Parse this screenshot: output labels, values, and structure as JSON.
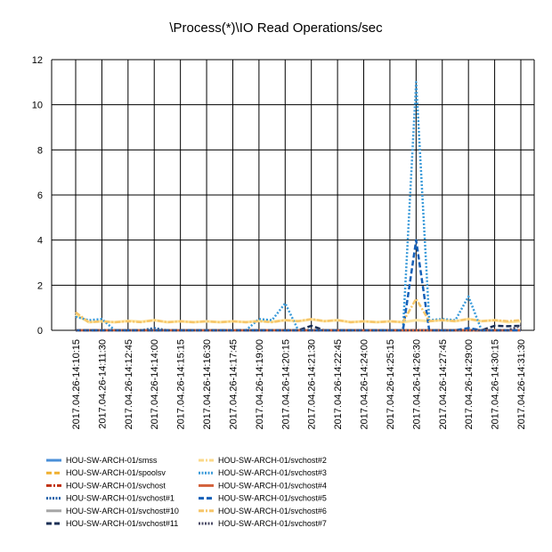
{
  "chart_data": {
    "type": "line",
    "title": "\\Process(*)\\IO Read Operations/sec",
    "xlabel": "",
    "ylabel": "",
    "ylim": [
      0,
      12
    ],
    "yticks": [
      0,
      2,
      4,
      6,
      8,
      10,
      12
    ],
    "grid": true,
    "legend_position": "bottom",
    "categories": [
      "2017.04.26-14:10:15",
      "2017.04.26-14:11:30",
      "2017.04.26-14:12:45",
      "2017.04.26-14:14:00",
      "2017.04.26-14:15:15",
      "2017.04.26-14:16:30",
      "2017.04.26-14:17:45",
      "2017.04.26-14:19:00",
      "2017.04.26-14:20:15",
      "2017.04.26-14:21:30",
      "2017.04.26-14:22:45",
      "2017.04.26-14:24:00",
      "2017.04.26-14:25:15",
      "2017.04.26-14:26:30",
      "2017.04.26-14:27:45",
      "2017.04.26-14:29:00",
      "2017.04.26-14:30:15",
      "2017.04.26-14:31:30"
    ],
    "series": [
      {
        "name": "HOU-SW-ARCH-01/smss",
        "color": "#4a8fd8",
        "dash": "solid",
        "values": [
          0,
          0,
          0,
          0,
          0,
          0,
          0,
          0,
          0,
          0,
          0,
          0,
          0,
          0,
          0,
          0,
          0,
          0
        ]
      },
      {
        "name": "HOU-SW-ARCH-01/spoolsv",
        "color": "#f0b030",
        "dash": "dash",
        "values": [
          0,
          0,
          0,
          0,
          0,
          0,
          0,
          0,
          0,
          0,
          0,
          0,
          0,
          0,
          0,
          0,
          0,
          0
        ]
      },
      {
        "name": "HOU-SW-ARCH-01/svchost",
        "color": "#c03010",
        "dash": "dashdot",
        "values": [
          0,
          0,
          0,
          0,
          0,
          0,
          0,
          0,
          0,
          0,
          0,
          0,
          0,
          0,
          0,
          0,
          0,
          0
        ]
      },
      {
        "name": "HOU-SW-ARCH-01/svchost#1",
        "color": "#1f5fa8",
        "dash": "dot",
        "values": [
          0,
          0,
          0,
          0.1,
          0,
          0,
          0,
          0,
          0,
          0,
          0,
          0,
          0,
          0,
          0,
          0,
          0,
          0
        ]
      },
      {
        "name": "HOU-SW-ARCH-01/svchost#10",
        "color": "#a6a6a6",
        "dash": "solid",
        "values": [
          0,
          0,
          0,
          0,
          0,
          0,
          0,
          0,
          0,
          0,
          0,
          0,
          0,
          0,
          0,
          0,
          0,
          0
        ]
      },
      {
        "name": "HOU-SW-ARCH-01/svchost#11",
        "color": "#1a2f55",
        "dash": "dash",
        "values": [
          0,
          0,
          0,
          0,
          0,
          0,
          0,
          0,
          0,
          0.2,
          0,
          0,
          0,
          0,
          0,
          0,
          0.2,
          0.2
        ]
      },
      {
        "name": "HOU-SW-ARCH-01/svchost#2",
        "color": "#fbd98a",
        "dash": "dashdot",
        "values": [
          0,
          0,
          0,
          0,
          0,
          0,
          0,
          0,
          0,
          0,
          0,
          0,
          0,
          0,
          0,
          0,
          0,
          0
        ]
      },
      {
        "name": "HOU-SW-ARCH-01/svchost#3",
        "color": "#3a9ad9",
        "dash": "dot",
        "values": [
          0.6,
          0.5,
          0,
          0,
          0,
          0,
          0,
          0.5,
          1.2,
          0,
          0,
          0,
          0,
          11.0,
          0.5,
          1.5,
          0,
          0
        ]
      },
      {
        "name": "HOU-SW-ARCH-01/svchost#4",
        "color": "#d2603a",
        "dash": "solid",
        "values": [
          0,
          0,
          0,
          0,
          0,
          0,
          0,
          0,
          0,
          0,
          0,
          0,
          0,
          0,
          0,
          0,
          0,
          0
        ]
      },
      {
        "name": "HOU-SW-ARCH-01/svchost#5",
        "color": "#1560b8",
        "dash": "dash",
        "values": [
          0,
          0,
          0,
          0,
          0,
          0,
          0,
          0,
          0,
          0,
          0,
          0,
          0,
          4.0,
          0,
          0.1,
          0,
          0
        ]
      },
      {
        "name": "HOU-SW-ARCH-01/svchost#6",
        "color": "#f6c66a",
        "dash": "dashdot",
        "values": [
          0.8,
          0.4,
          0.4,
          0.45,
          0.4,
          0.4,
          0.4,
          0.4,
          0.45,
          0.5,
          0.45,
          0.4,
          0.4,
          1.4,
          0.45,
          0.5,
          0.45,
          0.45
        ]
      },
      {
        "name": "HOU-SW-ARCH-01/svchost#7",
        "color": "#4a4a66",
        "dash": "dot",
        "values": [
          0,
          0,
          0,
          0,
          0,
          0,
          0,
          0,
          0,
          0,
          0,
          0,
          0,
          0,
          0,
          0,
          0,
          0.2
        ]
      }
    ],
    "extra_line": {
      "color": "#fde4a0",
      "values": [
        0.7,
        0.4,
        0.42,
        0.45,
        0.4,
        0.4,
        0.4,
        0.42,
        0.45,
        0.48,
        0.45,
        0.4,
        0.4,
        0.45,
        0.45,
        0.5,
        0.45,
        0.4
      ]
    }
  }
}
